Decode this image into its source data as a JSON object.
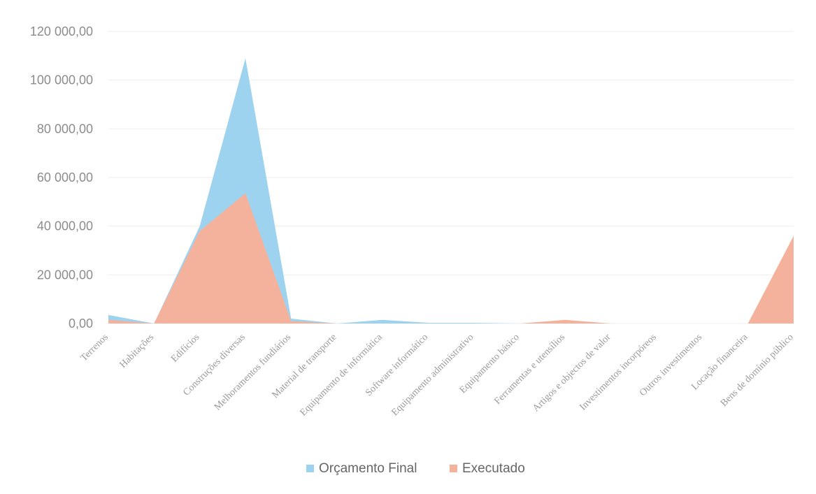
{
  "chart_data": {
    "type": "area",
    "categories": [
      "Terrenos",
      "Habitações",
      "Edifícios",
      "Construções diversas",
      "Melhoramentos fundiários",
      "Material de transporte",
      "Equipamento de informática",
      "Software informático",
      "Equipamento administrativo",
      "Equipamento básico",
      "Ferramentas e utensílios",
      "Artigos e objectos de valor",
      "Investimentos incorpóreos",
      "Outros investimentos",
      "Locação financeira",
      "Bens de domínio público"
    ],
    "series": [
      {
        "name": "Orçamento Final",
        "color": "#9dd3ef",
        "values": [
          3500,
          0,
          40000,
          109000,
          2000,
          0,
          1500,
          300,
          300,
          0,
          800,
          0,
          0,
          0,
          0,
          0
        ]
      },
      {
        "name": "Executado",
        "color": "#f4b29c",
        "values": [
          1500,
          0,
          38000,
          53500,
          1000,
          0,
          0,
          0,
          0,
          0,
          1500,
          0,
          0,
          0,
          0,
          36000
        ]
      }
    ],
    "yticks": [
      "0,00",
      "20 000,00",
      "40 000,00",
      "60 000,00",
      "80 000,00",
      "100 000,00",
      "120 000,00"
    ],
    "ylim": [
      0,
      120000
    ],
    "grid": true,
    "legend_position": "bottom",
    "title": "",
    "xlabel": "",
    "ylabel": ""
  }
}
